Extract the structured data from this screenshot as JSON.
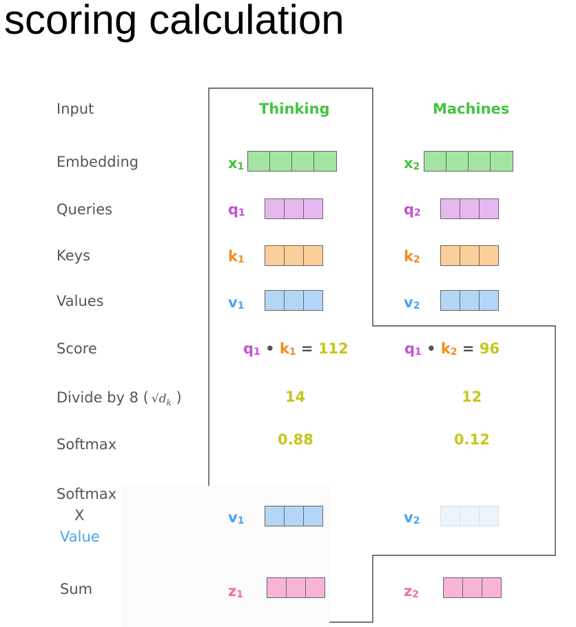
{
  "title": "scoring calculation",
  "rows": {
    "input": "Input",
    "embedding": "Embedding",
    "queries": "Queries",
    "keys": "Keys",
    "values": "Values",
    "score": "Score",
    "divide_prefix": "Divide by 8 (",
    "divide_math": "√d",
    "divide_math_sub": "k",
    "divide_suffix": " )",
    "softmax": "Softmax",
    "softmax_value_1": "Softmax",
    "softmax_value_2": "X",
    "softmax_value_3": "Value",
    "sum": "Sum"
  },
  "words": [
    "Thinking",
    "Machines"
  ],
  "symbols": {
    "x1": "x",
    "x2": "x",
    "q1": "q",
    "q2": "q",
    "k1": "k",
    "k2": "k",
    "v1": "v",
    "v2": "v",
    "z1": "z",
    "z2": "z",
    "sub1": "1",
    "sub2": "2"
  },
  "score": {
    "col1": {
      "q": "q",
      "q_sub": "1",
      "dot": "•",
      "k": "k",
      "k_sub": "1",
      "eq": "=",
      "value": "112"
    },
    "col2": {
      "q": "q",
      "q_sub": "1",
      "dot": "•",
      "k": "k",
      "k_sub": "2",
      "eq": "=",
      "value": "96"
    }
  },
  "divided": [
    "14",
    "12"
  ],
  "softmax_values": [
    "0.88",
    "0.12"
  ],
  "colors": {
    "embedding": "#a3e4a0",
    "query": "#e6b8f0",
    "key": "#fccf9a",
    "value": "#b3d6f6",
    "value_faded": "#eef4fc",
    "sum": "#f8b4d6"
  }
}
